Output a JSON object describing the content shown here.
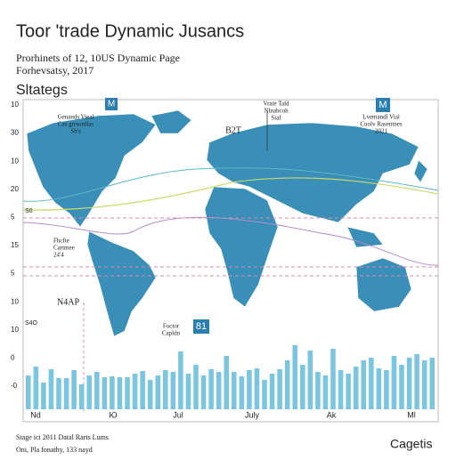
{
  "header": {
    "title": "Toor 'trade Dynamic Jusancs",
    "subtitle_lines": [
      "Prorhinets of 12, 10US Dynamic Page",
      "Forhevsatsy, 2017"
    ]
  },
  "section_title": "Sltategs",
  "chart": {
    "y_labels": [
      "10",
      "30",
      "10",
      "20",
      "5",
      "15",
      "5",
      "10",
      "10",
      "0",
      "-0"
    ],
    "x_labels": [
      "Nd",
      "Ю",
      "Jul",
      "July",
      "Ak",
      "Ml"
    ],
    "inner_labels": [
      "S0",
      "S4O"
    ],
    "badges": [
      "M",
      "M",
      "81"
    ],
    "annotations": [
      [
        "Genands Vieal",
        "Cas grrsordlas",
        "Sb's"
      ],
      [
        "Vrate Tald",
        "Nlnabcoh",
        "Siaf"
      ],
      [
        "Lvemandl Vial",
        "Cuolv Rasentnes",
        "2021"
      ],
      [
        "B2T"
      ],
      [
        "Fhcfte",
        "Cartmee",
        "24'4"
      ],
      [
        "N4AP"
      ],
      [
        "Foctor",
        "Capldn"
      ]
    ],
    "bar_values": [
      38,
      48,
      30,
      45,
      35,
      35,
      44,
      28,
      38,
      42,
      36,
      37,
      36,
      36,
      40,
      43,
      33,
      38,
      44,
      42,
      65,
      40,
      50,
      38,
      45,
      42,
      60,
      42,
      37,
      44,
      46,
      33,
      40,
      45,
      55,
      72,
      50,
      66,
      42,
      38,
      68,
      44,
      40,
      48,
      55,
      58,
      46,
      44,
      60,
      50,
      58,
      62,
      55,
      58
    ],
    "bar_color": "#7cc5e0"
  },
  "footer": {
    "lines": [
      "Stage ісі 2011 Datal Rarts Lums",
      "Oni, Pla fonathy, 133 nayd"
    ],
    "right": "Cagetis"
  }
}
